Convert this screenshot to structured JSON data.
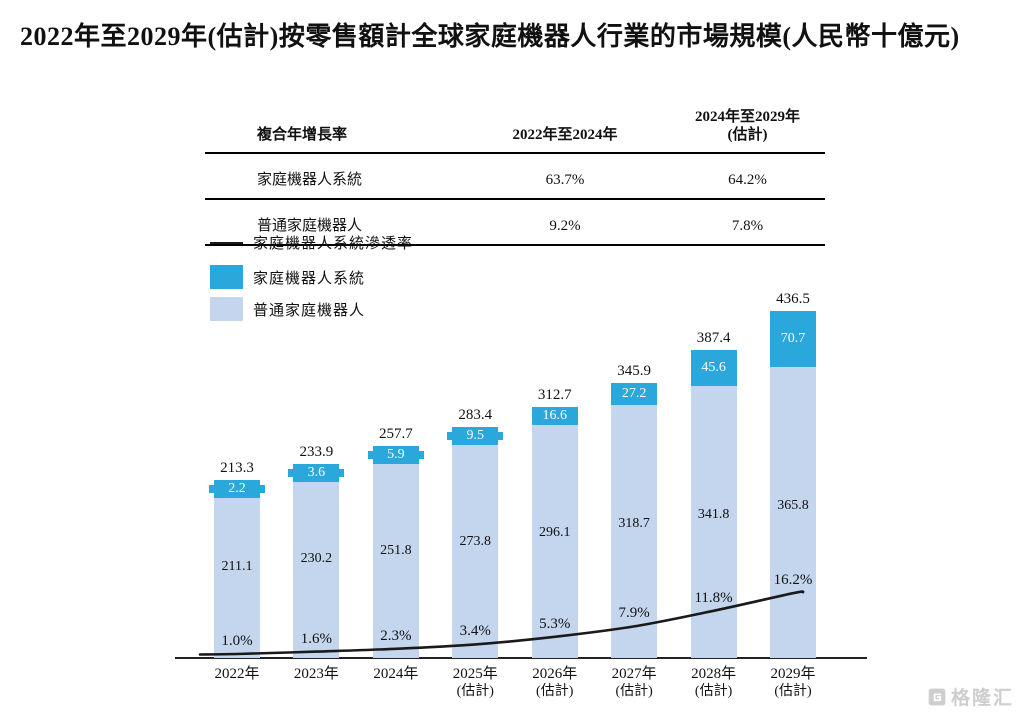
{
  "title": "2022年至2029年(估計)按零售額計全球家庭機器人行業的市場規模(人民幣十億元)",
  "table": {
    "header": {
      "col_label": "複合年增長率",
      "col_period1": "2022年至2024年",
      "col_period2_line1": "2024年至2029年",
      "col_period2_line2": "(估計)"
    },
    "rows": [
      {
        "label": "家庭機器人系統",
        "period1": "63.7%",
        "period2": "64.2%"
      },
      {
        "label": "普通家庭機器人",
        "period1": "9.2%",
        "period2": "7.8%"
      }
    ]
  },
  "legend": [
    {
      "type": "line",
      "label": "家庭機器人系統滲透率",
      "color": "#1a1a1a"
    },
    {
      "type": "box",
      "label": "家庭機器人系統",
      "color": "#2aa7db"
    },
    {
      "type": "box",
      "label": "普通家庭機器人",
      "color": "#c3d6ee"
    }
  ],
  "chart_data": {
    "type": "bar",
    "stacked": true,
    "title": "2022年至2029年(估計)按零售額計全球家庭機器人行業的市場規模",
    "unit": "人民幣十億元",
    "ylim": [
      0,
      450
    ],
    "grid": false,
    "legend_position": "top-left",
    "categories": [
      {
        "label": "2022年",
        "sub": ""
      },
      {
        "label": "2023年",
        "sub": ""
      },
      {
        "label": "2024年",
        "sub": ""
      },
      {
        "label": "2025年",
        "sub": "(估計)"
      },
      {
        "label": "2026年",
        "sub": "(估計)"
      },
      {
        "label": "2027年",
        "sub": "(估計)"
      },
      {
        "label": "2028年",
        "sub": "(估計)"
      },
      {
        "label": "2029年",
        "sub": "(估計)"
      }
    ],
    "series": [
      {
        "name": "普通家庭機器人",
        "color": "#c3d6ee",
        "values": [
          211.1,
          230.2,
          251.8,
          273.8,
          296.1,
          318.7,
          341.8,
          365.8
        ]
      },
      {
        "name": "家庭機器人系統",
        "color": "#2aa7db",
        "values": [
          2.2,
          3.6,
          5.9,
          9.5,
          16.6,
          27.2,
          45.6,
          70.7
        ]
      }
    ],
    "totals": [
      213.3,
      233.9,
      257.7,
      283.4,
      312.7,
      345.9,
      387.4,
      436.5
    ],
    "line_series": {
      "name": "家庭機器人系統滲透率",
      "unit": "%",
      "values": [
        1.0,
        1.6,
        2.3,
        3.4,
        5.3,
        7.9,
        11.8,
        16.2
      ],
      "color": "#1a1a1a"
    }
  },
  "watermark": {
    "brand": "格隆汇"
  }
}
